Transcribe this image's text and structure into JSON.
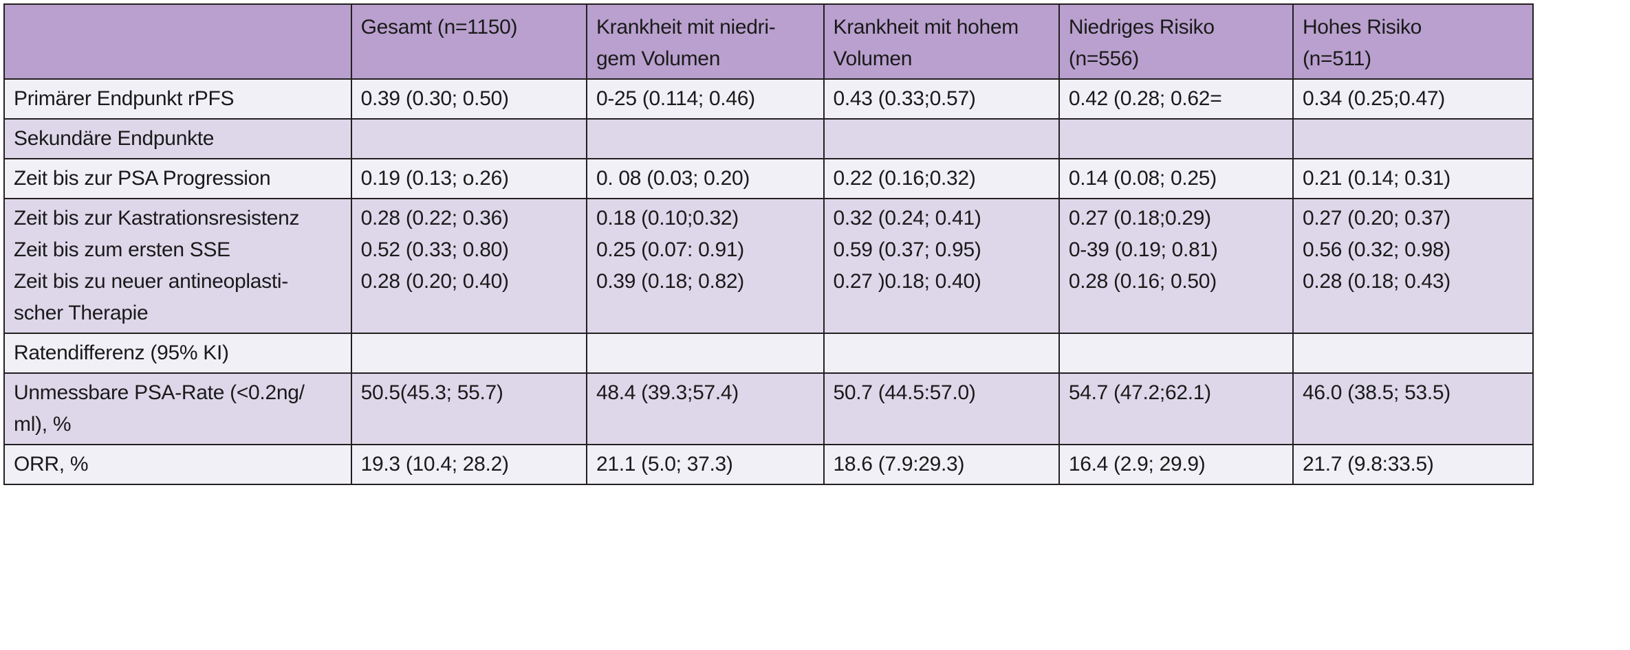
{
  "colors": {
    "header_background": "#b9a0ce",
    "row_light": "#f2f0f7",
    "row_dark": "#ded7ea",
    "border": "#231f20",
    "text": "#1a1a1a",
    "page_background": "#ffffff"
  },
  "table": {
    "columns": [
      {
        "label": ""
      },
      {
        "label": "Gesamt (n=1150)"
      },
      {
        "label": "Krankheit mit niedri-\ngem Volumen"
      },
      {
        "label": "Krankheit mit hohem\nVolumen"
      },
      {
        "label": "Niedriges Risiko\n(n=556)"
      },
      {
        "label": "Hohes Risiko\n(n=511)"
      }
    ],
    "rows": [
      {
        "label": "Primärer Endpunkt rPFS",
        "values": [
          "0.39 (0.30; 0.50)",
          "0-25 (0.114; 0.46)",
          "0.43 (0.33;0.57)",
          "0.42 (0.28; 0.62=",
          "0.34 (0.25;0.47)"
        ]
      },
      {
        "label": "Sekundäre Endpunkte",
        "values": [
          "",
          "",
          "",
          "",
          ""
        ]
      },
      {
        "label": "Zeit bis zur PSA Progression",
        "values": [
          "0.19 (0.13; o.26)",
          "0. 08 (0.03; 0.20)",
          "0.22 (0.16;0.32)",
          "0.14 (0.08; 0.25)",
          "0.21 (0.14; 0.31)"
        ]
      },
      {
        "label": "Zeit bis zur Kastrationsresistenz\nZeit bis zum ersten SSE\nZeit bis zu neuer antineoplasti-\nscher Therapie",
        "values": [
          "0.28 (0.22; 0.36)\n0.52 (0.33; 0.80)\n0.28 (0.20; 0.40)",
          "0.18 (0.10;0.32)\n0.25 (0.07: 0.91)\n0.39 (0.18; 0.82)",
          "0.32 (0.24; 0.41)\n0.59 (0.37; 0.95)\n0.27 )0.18; 0.40)",
          "0.27 (0.18;0.29)\n0-39 (0.19; 0.81)\n0.28 (0.16; 0.50)",
          "0.27 (0.20; 0.37)\n0.56 (0.32; 0.98)\n0.28 (0.18; 0.43)"
        ]
      },
      {
        "label": "Ratendifferenz (95% KI)",
        "values": [
          "",
          "",
          "",
          "",
          ""
        ]
      },
      {
        "label": "Unmessbare PSA-Rate (<0.2ng/\nml), %",
        "values": [
          "50.5(45.3; 55.7)",
          "48.4 (39.3;57.4)",
          "50.7 (44.5:57.0)",
          "54.7 (47.2;62.1)",
          "46.0 (38.5; 53.5)"
        ]
      },
      {
        "label": "ORR, %",
        "values": [
          "19.3 (10.4; 28.2)",
          "21.1 (5.0; 37.3)",
          "18.6 (7.9:29.3)",
          "16.4 (2.9; 29.9)",
          "21.7 (9.8:33.5)"
        ]
      }
    ]
  }
}
